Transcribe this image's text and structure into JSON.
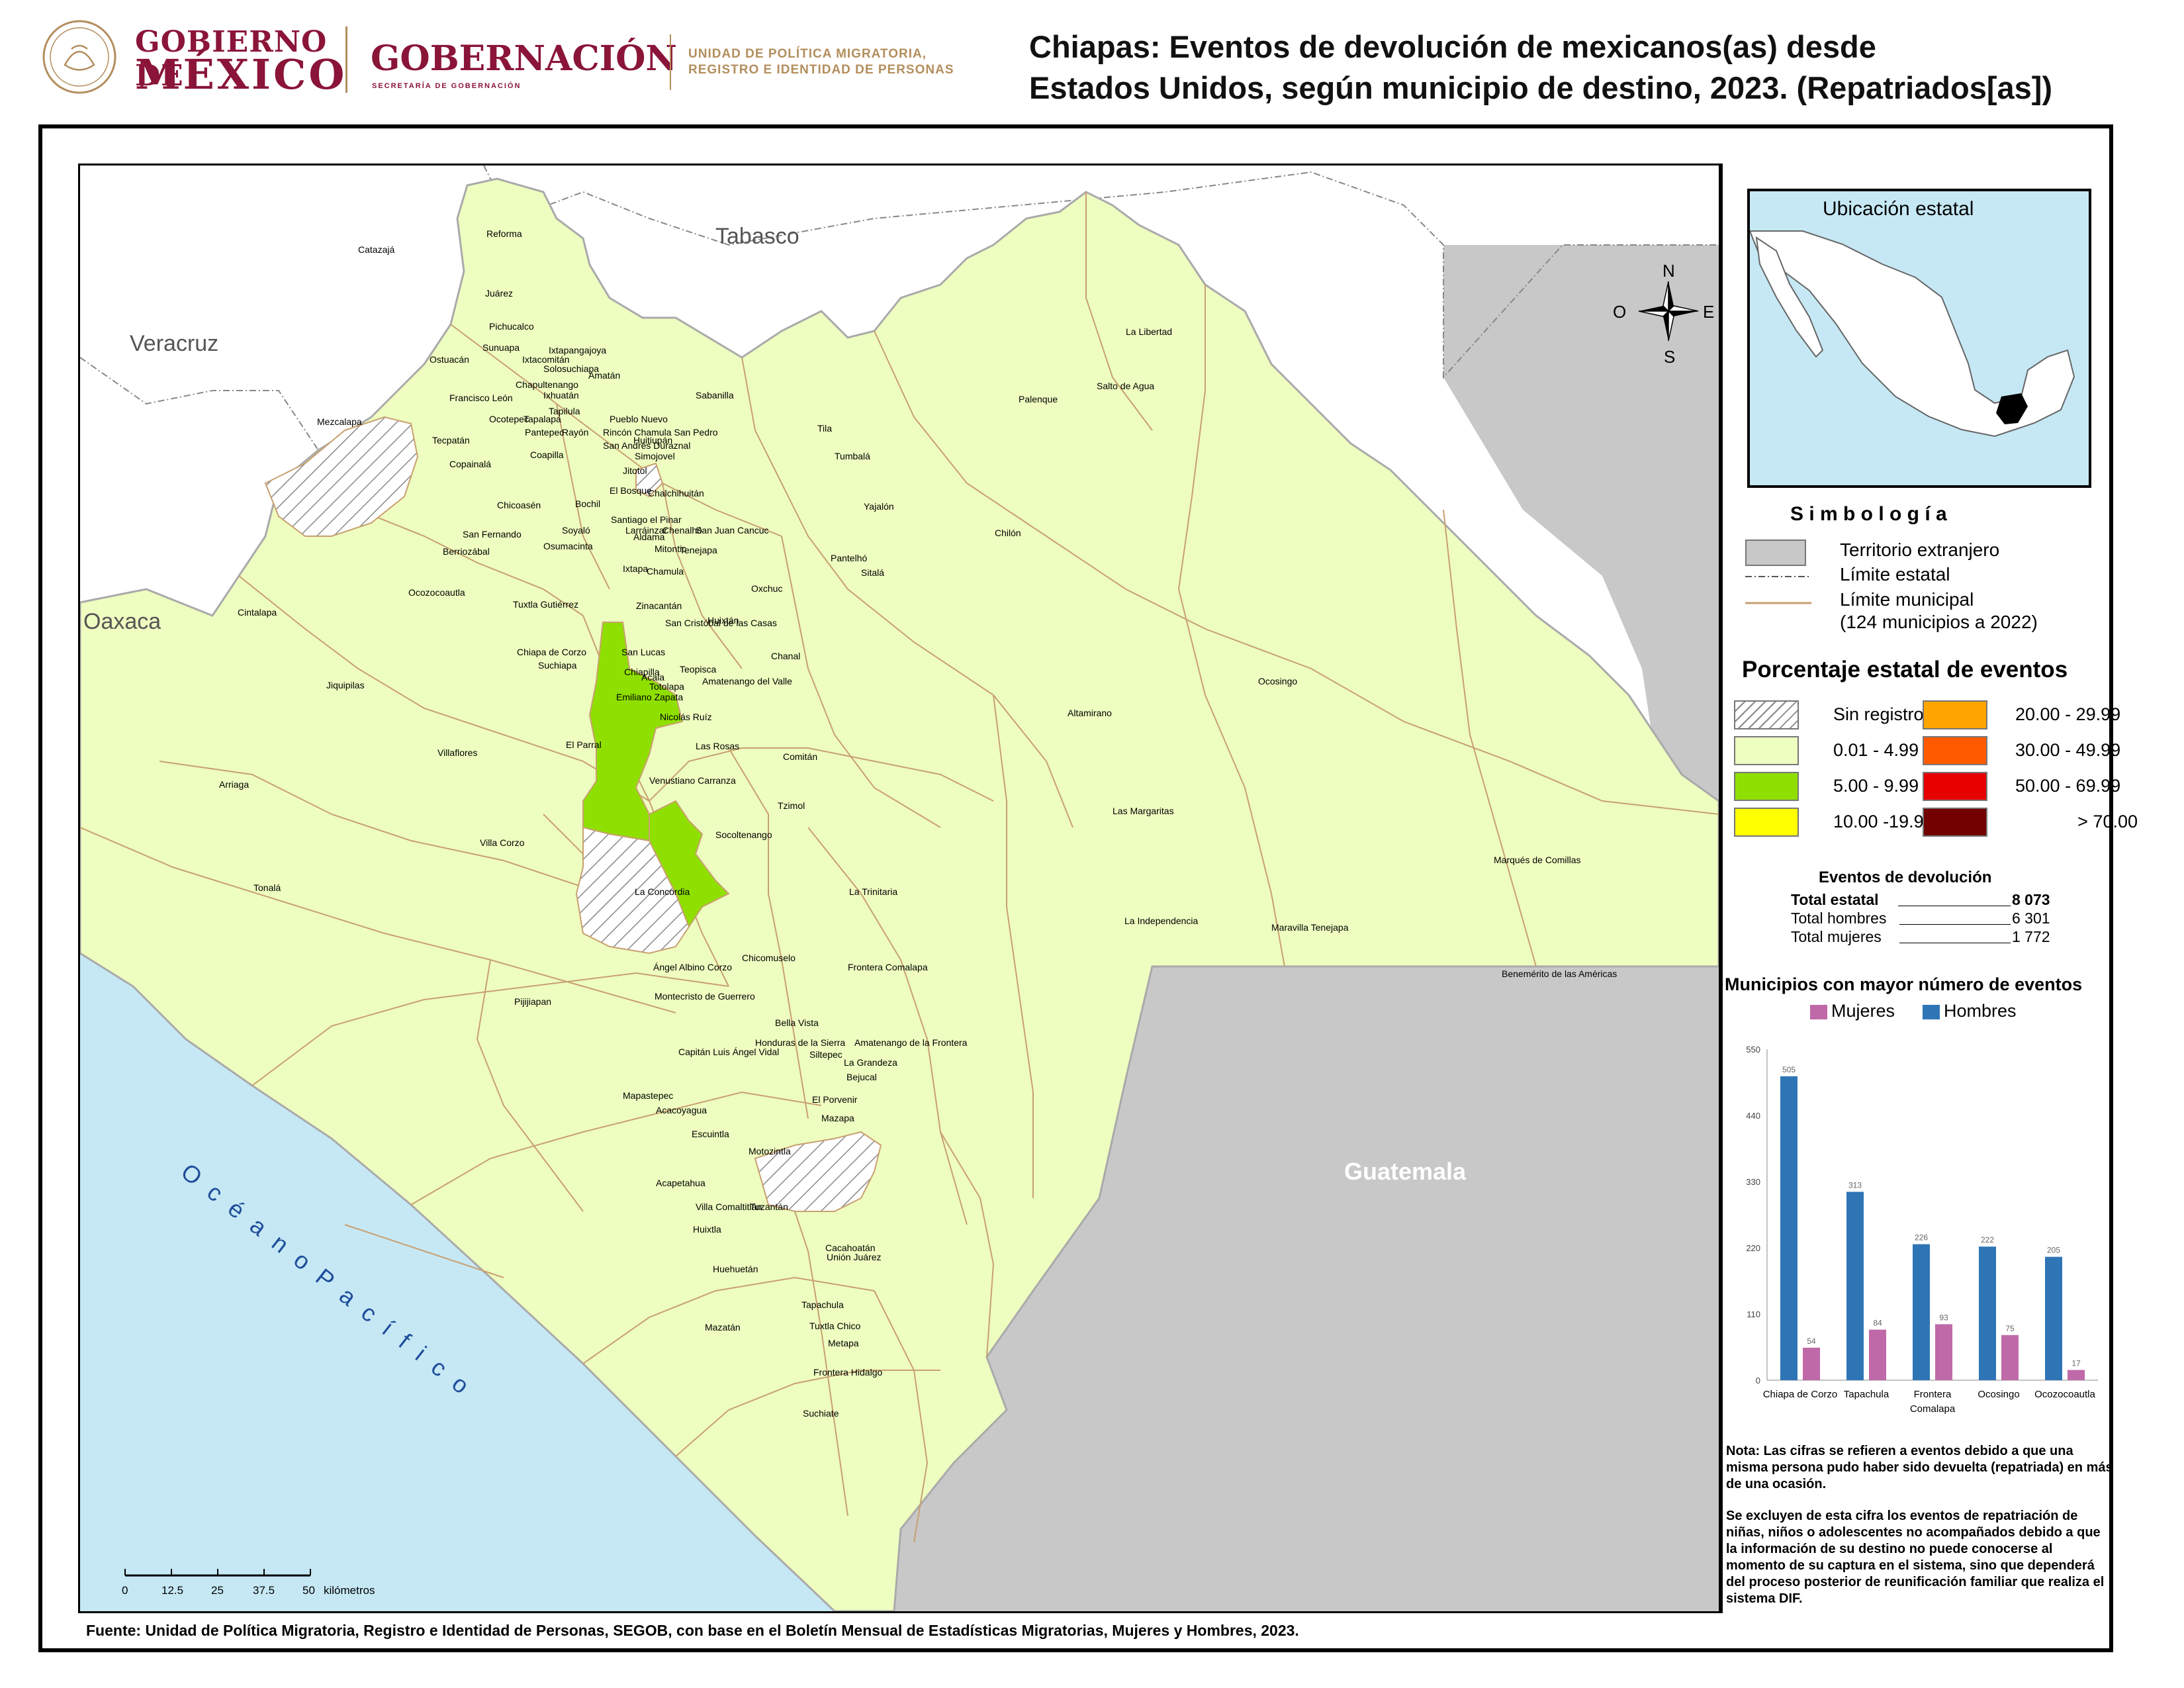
{
  "header": {
    "gob_line1": "GOBIERNO DE",
    "gob_line2": "MÉXICO",
    "gobernacion": "GOBERNACIÓN",
    "gobernacion_sub": "SECRETARÍA DE GOBERNACIÓN",
    "unit_line1": "UNIDAD DE POLÍTICA MIGRATORIA,",
    "unit_line2": "REGISTRO E IDENTIDAD DE PERSONAS",
    "title_line1": "Chiapas: Eventos de devolución de mexicanos(as) desde",
    "title_line2": "Estados Unidos, según municipio de destino, 2023. (Repatriados[as])"
  },
  "map": {
    "regions": [
      "Tabasco",
      "Veracruz",
      "Oaxaca",
      "Guatemala"
    ],
    "ocean": "O c é a n o   P a c í f i c o",
    "compass": {
      "n": "N",
      "s": "S",
      "e": "E",
      "o": "O"
    },
    "scale": {
      "ticks": [
        "0",
        "12.5",
        "25",
        "37.5",
        "50"
      ],
      "unit": "kilómetros"
    },
    "municipalities": [
      {
        "name": "Reforma"
      },
      {
        "name": "Juárez"
      },
      {
        "name": "Pichucalco"
      },
      {
        "name": "Sunuapa"
      },
      {
        "name": "Ostuacán"
      },
      {
        "name": "Ixtacomitán"
      },
      {
        "name": "Ixtapangajoya"
      },
      {
        "name": "Solosuchiapa"
      },
      {
        "name": "Amatán"
      },
      {
        "name": "Chapultenango"
      },
      {
        "name": "Francisco León"
      },
      {
        "name": "Ixhuatán"
      },
      {
        "name": "Tapilula"
      },
      {
        "name": "Mezcalapa"
      },
      {
        "name": "Ocotepec"
      },
      {
        "name": "Tapalapa"
      },
      {
        "name": "Pueblo Nuevo"
      },
      {
        "name": "Pantepec"
      },
      {
        "name": "Rayón"
      },
      {
        "name": "Rincón Chamula San Pedro"
      },
      {
        "name": "San Andrés Duraznal"
      },
      {
        "name": "Tecpatán"
      },
      {
        "name": "Coapilla"
      },
      {
        "name": "Huitiupán"
      },
      {
        "name": "Simojovel"
      },
      {
        "name": "Sabanilla"
      },
      {
        "name": "Copainalá"
      },
      {
        "name": "Jitotol"
      },
      {
        "name": "El Bosque"
      },
      {
        "name": "Chalchihuitán"
      },
      {
        "name": "Chicoasén"
      },
      {
        "name": "Bochil"
      },
      {
        "name": "Santiago el Pinar"
      },
      {
        "name": "Larráinzar"
      },
      {
        "name": "Aldama"
      },
      {
        "name": "Chenalhó"
      },
      {
        "name": "San Juan Cancuc"
      },
      {
        "name": "San Fernando"
      },
      {
        "name": "Soyaló"
      },
      {
        "name": "Osumacinta"
      },
      {
        "name": "Berriozábal"
      },
      {
        "name": "Mitontic"
      },
      {
        "name": "Tenejapa"
      },
      {
        "name": "Ixtapa"
      },
      {
        "name": "Chamula"
      },
      {
        "name": "Ocozocoautla"
      },
      {
        "name": "Tuxtla Gutiérrez"
      },
      {
        "name": "Zinacantán"
      },
      {
        "name": "San Cristóbal de las Casas"
      },
      {
        "name": "Huixtán"
      },
      {
        "name": "Oxchuc"
      },
      {
        "name": "Cintalapa"
      },
      {
        "name": "Chiapa de Corzo"
      },
      {
        "name": "San Lucas"
      },
      {
        "name": "Suchiapa"
      },
      {
        "name": "Acala"
      },
      {
        "name": "Chiapilla"
      },
      {
        "name": "Teopisca"
      },
      {
        "name": "Amatenango del Valle"
      },
      {
        "name": "Totolapa"
      },
      {
        "name": "Chanal"
      },
      {
        "name": "Emiliano Zapata"
      },
      {
        "name": "Jiquipilas"
      },
      {
        "name": "Nicolás Ruíz"
      },
      {
        "name": "El Parral"
      },
      {
        "name": "Las Rosas"
      },
      {
        "name": "Villaflores"
      },
      {
        "name": "Venustiano Carranza"
      },
      {
        "name": "Comitán"
      },
      {
        "name": "Arriaga"
      },
      {
        "name": "Tzimol"
      },
      {
        "name": "Socoltenango"
      },
      {
        "name": "Villa Corzo"
      },
      {
        "name": "Tonalá"
      },
      {
        "name": "La Concordia"
      },
      {
        "name": "La Trinitaria"
      },
      {
        "name": "Chicomuselo"
      },
      {
        "name": "Ángel Albino Corzo"
      },
      {
        "name": "Frontera Comalapa"
      },
      {
        "name": "Montecristo de Guerrero"
      },
      {
        "name": "Pijijiapan"
      },
      {
        "name": "Bella Vista"
      },
      {
        "name": "Amatenango de la Frontera"
      },
      {
        "name": "Honduras de la Sierra"
      },
      {
        "name": "Capitán Luis Ángel Vidal"
      },
      {
        "name": "Siltepec"
      },
      {
        "name": "La Grandeza"
      },
      {
        "name": "Bejucal"
      },
      {
        "name": "Mapastepec"
      },
      {
        "name": "El Porvenir"
      },
      {
        "name": "Acacoyagua"
      },
      {
        "name": "Mazapa"
      },
      {
        "name": "Escuintla"
      },
      {
        "name": "Motozintla"
      },
      {
        "name": "Acapetahua"
      },
      {
        "name": "Villa Comaltitlán"
      },
      {
        "name": "Tuzantán"
      },
      {
        "name": "Huixtla"
      },
      {
        "name": "Cacahoatán"
      },
      {
        "name": "Unión Juárez"
      },
      {
        "name": "Huehuetán"
      },
      {
        "name": "Tapachula"
      },
      {
        "name": "Mazatán"
      },
      {
        "name": "Tuxtla Chico"
      },
      {
        "name": "Metapa"
      },
      {
        "name": "Frontera Hidalgo"
      },
      {
        "name": "Suchiate"
      },
      {
        "name": "Catazajá"
      },
      {
        "name": "La Libertad"
      },
      {
        "name": "Salto de Agua"
      },
      {
        "name": "Palenque"
      },
      {
        "name": "Tila"
      },
      {
        "name": "Tumbalá"
      },
      {
        "name": "Yajalón"
      },
      {
        "name": "Chilón"
      },
      {
        "name": "Pantelhó"
      },
      {
        "name": "Sitalá"
      },
      {
        "name": "Ocosingo"
      },
      {
        "name": "Altamirano"
      },
      {
        "name": "Las Margaritas"
      },
      {
        "name": "Marqués de Comillas"
      },
      {
        "name": "La Independencia"
      },
      {
        "name": "Maravilla Tenejapa"
      },
      {
        "name": "Benemérito de las Américas"
      }
    ]
  },
  "inset": {
    "title": "Ubicación estatal"
  },
  "legend": {
    "simbologia_title": "S i m b o l o g í a",
    "items": [
      "Territorio extranjero",
      "Límite estatal",
      "Límite municipal",
      "(124 municipios a 2022)"
    ],
    "percent_title": "Porcentaje estatal de eventos",
    "classes": [
      {
        "label": "Sin registro",
        "color": "hatch"
      },
      {
        "label": "0.01  - 4.99",
        "color": "#eefdc0"
      },
      {
        "label": "5.00  - 9.99",
        "color": "#8fe000"
      },
      {
        "label": "10.00 -19.99",
        "color": "#ffff00"
      },
      {
        "label": "20.00 - 29.99",
        "color": "#ffa500"
      },
      {
        "label": "30.00 - 49.99",
        "color": "#ff5a00"
      },
      {
        "label": "50.00 - 69.99",
        "color": "#e60000"
      },
      {
        "label": "> 70.00",
        "color": "#730000"
      }
    ]
  },
  "totals": {
    "title": "Eventos de devolución",
    "rows": [
      {
        "label": "Total estatal",
        "value": "8 073"
      },
      {
        "label": "Total hombres",
        "value": "6 301"
      },
      {
        "label": "Total mujeres",
        "value": "1 772"
      }
    ]
  },
  "chart_data": {
    "type": "bar",
    "title": "Municipios con mayor número de eventos",
    "categories": [
      "Chiapa de Corzo",
      "Tapachula",
      "Frontera Comalapa",
      "Ocosingo",
      "Ocozocoautla"
    ],
    "series": [
      {
        "name": "Mujeres",
        "color": "#c069a8",
        "values": [
          54,
          84,
          93,
          75,
          17
        ]
      },
      {
        "name": "Hombres",
        "color": "#2e75b6",
        "values": [
          505,
          313,
          226,
          222,
          205
        ]
      }
    ],
    "yticks": [
      "0",
      "110",
      "220",
      "330",
      "440",
      "550"
    ],
    "ylim": [
      0,
      550
    ],
    "legend_position": "top"
  },
  "notes": {
    "note1": "Nota: Las cifras se refieren a eventos debido a que una misma persona pudo haber sido devuelta (repatriada) en más de una ocasión.",
    "note2": "Se excluyen de esta cifra los eventos de repatriación de niñas, niños o adolescentes no acompañados debido a que la información de su destino no puede conocerse al momento de su captura en el sistema, sino que dependerá del proceso posterior de reunificación familiar que realiza el sistema DIF."
  },
  "source": "Fuente: Unidad de Política Migratoria, Registro e Identidad de Personas, SEGOB, con base en el Boletín Mensual de Estadísticas Migratorias, Mujeres y Hombres, 2023.",
  "colors": {
    "state_fill": "#eefdc0",
    "highlight": "#8fe000",
    "foreign": "#c8c8c8",
    "ocean": "#c6e8f5",
    "border": "#c8a070"
  }
}
